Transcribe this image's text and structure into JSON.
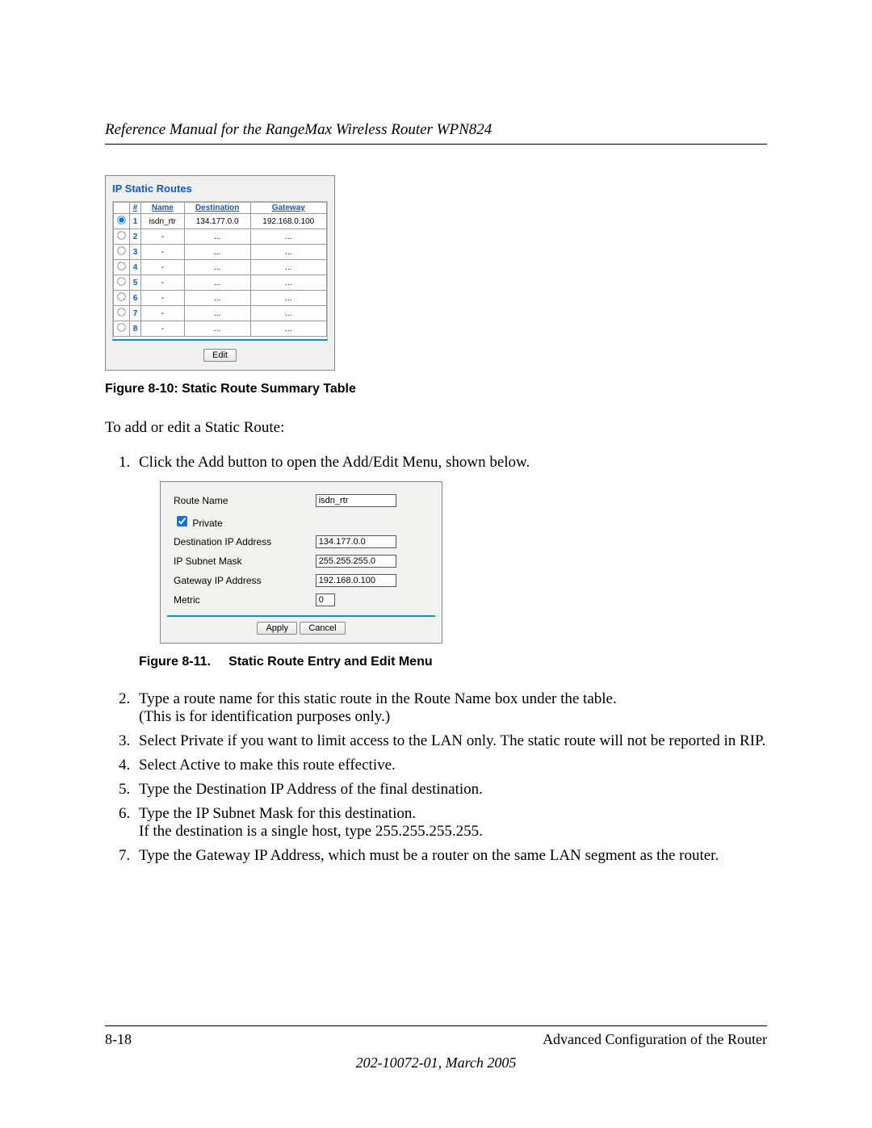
{
  "header": {
    "title": "Reference Manual for the RangeMax Wireless Router WPN824"
  },
  "figure1": {
    "panel_title": "IP Static Routes",
    "columns": {
      "radio": "",
      "num": "#",
      "name": "Name",
      "dest": "Destination",
      "gw": "Gateway"
    },
    "rows": [
      {
        "checked": true,
        "num": "1",
        "name": "isdn_rtr",
        "dest": "134.177.0.0",
        "gw": "192.168.0.100"
      },
      {
        "checked": false,
        "num": "2",
        "name": "-",
        "dest": "...",
        "gw": "..."
      },
      {
        "checked": false,
        "num": "3",
        "name": "-",
        "dest": "...",
        "gw": "..."
      },
      {
        "checked": false,
        "num": "4",
        "name": "-",
        "dest": "...",
        "gw": "..."
      },
      {
        "checked": false,
        "num": "5",
        "name": "-",
        "dest": "...",
        "gw": "..."
      },
      {
        "checked": false,
        "num": "6",
        "name": "-",
        "dest": "...",
        "gw": "..."
      },
      {
        "checked": false,
        "num": "7",
        "name": "-",
        "dest": "...",
        "gw": "..."
      },
      {
        "checked": false,
        "num": "8",
        "name": "-",
        "dest": "...",
        "gw": "..."
      }
    ],
    "edit_button": "Edit",
    "caption": "Figure 8-10:  Static Route Summary Table"
  },
  "intro": "To add or edit a Static Route:",
  "step1": "Click the Add button to open the Add/Edit Menu, shown below.",
  "figure2": {
    "labels": {
      "route_name": "Route Name",
      "private": "Private",
      "dest_ip": "Destination IP Address",
      "subnet": "IP Subnet Mask",
      "gateway": "Gateway IP Address",
      "metric": "Metric"
    },
    "values": {
      "route_name": "isdn_rtr",
      "dest_ip": "134.177.0.0",
      "subnet": "255.255.255.0",
      "gateway": "192.168.0.100",
      "metric": "0"
    },
    "private_checked": true,
    "apply": "Apply",
    "cancel": "Cancel",
    "caption_a": "Figure 8-11.",
    "caption_b": "Static Route Entry and Edit Menu"
  },
  "steps_rest": {
    "s2a": "Type a route name for this static route in the Route Name box under the table.",
    "s2b": "(This is for identification purposes only.)",
    "s3": "Select Private if you want to limit access to the LAN only. The static route will not be reported in RIP.",
    "s4": "Select Active to make this route effective.",
    "s5": "Type the Destination IP Address of the final destination.",
    "s6a": "Type the IP Subnet Mask for this destination.",
    "s6b": "If the destination is a single host, type 255.255.255.255.",
    "s7": "Type the Gateway IP Address, which must be a router on the same LAN segment as the router."
  },
  "footer": {
    "page_num": "8-18",
    "section": "Advanced Configuration of the Router",
    "docid": "202-10072-01, March 2005"
  },
  "style": {
    "accent_blue": "#0a5bd6",
    "divider_blue": "#0a8fd0",
    "panel_bg": "#f0f0ee"
  }
}
